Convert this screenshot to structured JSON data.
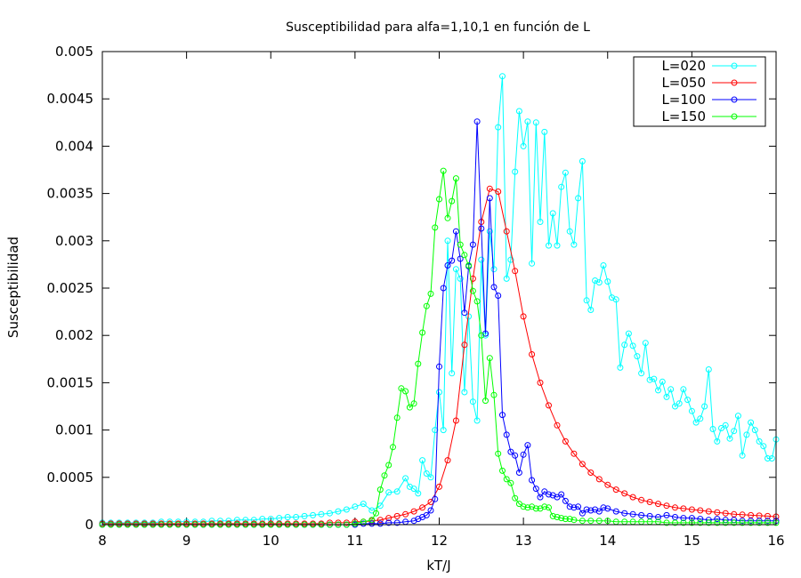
{
  "chart_data": {
    "type": "line",
    "title": "Susceptibilidad para alfa=1,10,1 en función de L",
    "xlabel": "kT/J",
    "ylabel": "Susceptibilidad",
    "xlim": [
      8,
      16
    ],
    "ylim": [
      0,
      0.005
    ],
    "xticks": [
      "8",
      "9",
      "10",
      "11",
      "12",
      "13",
      "14",
      "15",
      "16"
    ],
    "yticks": [
      "0",
      "0.0005",
      "0.001",
      "0.0015",
      "0.002",
      "0.0025",
      "0.003",
      "0.0035",
      "0.004",
      "0.0045",
      "0.005"
    ],
    "grid": false,
    "legend_position": "top-right",
    "marker": "open-circle",
    "series": [
      {
        "name": "L=020",
        "color": "#00ffff",
        "x": [
          8.0,
          8.1,
          8.2,
          8.3,
          8.4,
          8.5,
          8.6,
          8.7,
          8.8,
          8.9,
          9.0,
          9.1,
          9.2,
          9.3,
          9.4,
          9.5,
          9.6,
          9.7,
          9.8,
          9.9,
          10.0,
          10.1,
          10.2,
          10.3,
          10.4,
          10.5,
          10.6,
          10.7,
          10.8,
          10.9,
          11.0,
          11.1,
          11.2,
          11.3,
          11.4,
          11.5,
          11.6,
          11.65,
          11.7,
          11.75,
          11.8,
          11.85,
          11.9,
          11.95,
          12.0,
          12.05,
          12.1,
          12.15,
          12.2,
          12.25,
          12.3,
          12.35,
          12.4,
          12.45,
          12.5,
          12.55,
          12.6,
          12.65,
          12.7,
          12.75,
          12.8,
          12.85,
          12.9,
          12.95,
          13.0,
          13.05,
          13.1,
          13.15,
          13.2,
          13.25,
          13.3,
          13.35,
          13.4,
          13.45,
          13.5,
          13.55,
          13.6,
          13.65,
          13.7,
          13.75,
          13.8,
          13.85,
          13.9,
          13.95,
          14.0,
          14.05,
          14.1,
          14.15,
          14.2,
          14.25,
          14.3,
          14.35,
          14.4,
          14.45,
          14.5,
          14.55,
          14.6,
          14.65,
          14.7,
          14.75,
          14.8,
          14.85,
          14.9,
          14.95,
          15.0,
          15.05,
          15.1,
          15.15,
          15.2,
          15.25,
          15.3,
          15.35,
          15.4,
          15.45,
          15.5,
          15.55,
          15.6,
          15.65,
          15.7,
          15.75,
          15.8,
          15.85,
          15.9,
          15.95,
          16.0
        ],
        "y": [
          2e-05,
          2e-05,
          2e-05,
          2e-05,
          2e-05,
          2e-05,
          2e-05,
          3e-05,
          3e-05,
          3e-05,
          3e-05,
          3e-05,
          3e-05,
          4e-05,
          4e-05,
          4e-05,
          5e-05,
          5e-05,
          5e-05,
          6e-05,
          6e-05,
          7e-05,
          8e-05,
          8e-05,
          9e-05,
          0.0001,
          0.00011,
          0.00012,
          0.00014,
          0.00016,
          0.00019,
          0.00022,
          0.00015,
          0.0002,
          0.00034,
          0.00035,
          0.00049,
          0.0004,
          0.00038,
          0.00033,
          0.00068,
          0.00054,
          0.0005,
          0.001,
          0.0014,
          0.001,
          0.003,
          0.0016,
          0.0027,
          0.0026,
          0.0014,
          0.0022,
          0.0013,
          0.0011,
          0.0028,
          0.002,
          0.0031,
          0.0027,
          0.0042,
          0.00474,
          0.0026,
          0.0028,
          0.00373,
          0.00437,
          0.004,
          0.00426,
          0.00276,
          0.00425,
          0.0032,
          0.00415,
          0.00295,
          0.00329,
          0.00295,
          0.00357,
          0.00372,
          0.0031,
          0.00296,
          0.00345,
          0.00384,
          0.00237,
          0.00227,
          0.00258,
          0.00256,
          0.00274,
          0.00257,
          0.0024,
          0.00238,
          0.00166,
          0.0019,
          0.00202,
          0.00189,
          0.00178,
          0.0016,
          0.00192,
          0.00153,
          0.00154,
          0.00142,
          0.00151,
          0.00135,
          0.00143,
          0.00125,
          0.00128,
          0.00143,
          0.00132,
          0.0012,
          0.00108,
          0.00112,
          0.00125,
          0.00164,
          0.00101,
          0.00088,
          0.00102,
          0.00105,
          0.00091,
          0.00099,
          0.00115,
          0.00073,
          0.00095,
          0.00108,
          0.001,
          0.00088,
          0.00083,
          0.0007,
          0.0007,
          0.0009
        ]
      },
      {
        "name": "L=050",
        "color": "#ff0000",
        "x": [
          8.0,
          8.1,
          8.2,
          8.3,
          8.4,
          8.5,
          8.6,
          8.7,
          8.8,
          8.9,
          9.0,
          9.1,
          9.2,
          9.3,
          9.4,
          9.5,
          9.6,
          9.7,
          9.8,
          9.9,
          10.0,
          10.1,
          10.2,
          10.3,
          10.4,
          10.5,
          10.6,
          10.7,
          10.8,
          10.9,
          11.0,
          11.1,
          11.2,
          11.3,
          11.4,
          11.5,
          11.6,
          11.7,
          11.8,
          11.9,
          12.0,
          12.1,
          12.2,
          12.3,
          12.4,
          12.5,
          12.6,
          12.7,
          12.8,
          12.9,
          13.0,
          13.1,
          13.2,
          13.3,
          13.4,
          13.5,
          13.6,
          13.7,
          13.8,
          13.9,
          14.0,
          14.1,
          14.2,
          14.3,
          14.4,
          14.5,
          14.6,
          14.7,
          14.8,
          14.9,
          15.0,
          15.1,
          15.2,
          15.3,
          15.4,
          15.5,
          15.6,
          15.7,
          15.8,
          15.9,
          16.0
        ],
        "y": [
          1e-05,
          1e-05,
          1e-05,
          1e-05,
          1e-05,
          1e-05,
          1e-05,
          1e-05,
          1e-05,
          1e-05,
          1e-05,
          1e-05,
          1e-05,
          1e-05,
          1e-05,
          1e-05,
          1e-05,
          1e-05,
          1e-05,
          1e-05,
          1e-05,
          1e-05,
          1e-05,
          1e-05,
          1e-05,
          1e-05,
          1e-05,
          2e-05,
          2e-05,
          2e-05,
          3e-05,
          3e-05,
          4e-05,
          5e-05,
          7e-05,
          9e-05,
          0.00011,
          0.00014,
          0.00018,
          0.00024,
          0.0004,
          0.00068,
          0.0011,
          0.0019,
          0.0026,
          0.0032,
          0.00355,
          0.00352,
          0.0031,
          0.00268,
          0.0022,
          0.0018,
          0.0015,
          0.00126,
          0.00105,
          0.00088,
          0.00075,
          0.00064,
          0.00055,
          0.00048,
          0.00042,
          0.00037,
          0.00033,
          0.00029,
          0.00026,
          0.00024,
          0.00022,
          0.0002,
          0.00018,
          0.00017,
          0.00016,
          0.00015,
          0.00014,
          0.00013,
          0.00012,
          0.00011,
          0.000105,
          0.0001,
          9.5e-05,
          9e-05,
          8.5e-05
        ]
      },
      {
        "name": "L=100",
        "color": "#0000ff",
        "x": [
          8.0,
          8.1,
          8.2,
          8.3,
          8.4,
          8.5,
          8.6,
          8.7,
          8.8,
          8.9,
          9.0,
          9.1,
          9.2,
          9.3,
          9.4,
          9.5,
          9.6,
          9.7,
          9.8,
          9.9,
          10.0,
          10.1,
          10.2,
          10.3,
          10.4,
          10.5,
          10.6,
          10.7,
          10.8,
          10.9,
          11.0,
          11.1,
          11.2,
          11.3,
          11.4,
          11.5,
          11.6,
          11.7,
          11.75,
          11.8,
          11.85,
          11.9,
          11.95,
          12.0,
          12.05,
          12.1,
          12.15,
          12.2,
          12.25,
          12.3,
          12.35,
          12.4,
          12.45,
          12.5,
          12.55,
          12.6,
          12.65,
          12.7,
          12.75,
          12.8,
          12.85,
          12.9,
          12.95,
          13.0,
          13.05,
          13.1,
          13.15,
          13.2,
          13.25,
          13.3,
          13.35,
          13.4,
          13.45,
          13.5,
          13.55,
          13.6,
          13.65,
          13.7,
          13.75,
          13.8,
          13.85,
          13.9,
          13.95,
          14.0,
          14.1,
          14.2,
          14.3,
          14.4,
          14.5,
          14.6,
          14.7,
          14.8,
          14.9,
          15.0,
          15.1,
          15.2,
          15.3,
          15.4,
          15.5,
          15.6,
          15.7,
          15.8,
          15.9,
          16.0
        ],
        "y": [
          0,
          0,
          0,
          0,
          0,
          0,
          0,
          0,
          0,
          0,
          0,
          0,
          0,
          0,
          0,
          0,
          0,
          0,
          0,
          0,
          0,
          0,
          0,
          0,
          0,
          0,
          0,
          0,
          0,
          0,
          0,
          1e-05,
          1e-05,
          1e-05,
          2e-05,
          2e-05,
          3e-05,
          4e-05,
          6e-05,
          8e-05,
          0.0001,
          0.00015,
          0.00027,
          0.00167,
          0.0025,
          0.00274,
          0.00279,
          0.0031,
          0.00281,
          0.00224,
          0.00273,
          0.00296,
          0.00426,
          0.00313,
          0.00202,
          0.00345,
          0.00251,
          0.00242,
          0.00116,
          0.00095,
          0.00077,
          0.00073,
          0.00055,
          0.00074,
          0.00084,
          0.00047,
          0.00038,
          0.00029,
          0.00035,
          0.00032,
          0.00031,
          0.00029,
          0.00032,
          0.00025,
          0.00019,
          0.00018,
          0.00019,
          0.00012,
          0.00016,
          0.00015,
          0.00016,
          0.00014,
          0.00018,
          0.00017,
          0.00014,
          0.00012,
          0.00011,
          0.0001,
          9e-05,
          8e-05,
          0.0001,
          8e-05,
          7e-05,
          7e-05,
          6e-05,
          5e-05,
          6e-05,
          5e-05,
          5e-05,
          4e-05,
          4e-05,
          4e-05,
          4e-05,
          4e-05
        ]
      },
      {
        "name": "L=150",
        "color": "#00ff00",
        "x": [
          8.0,
          8.1,
          8.2,
          8.3,
          8.4,
          8.5,
          8.6,
          8.7,
          8.8,
          8.9,
          9.0,
          9.1,
          9.2,
          9.3,
          9.4,
          9.5,
          9.6,
          9.7,
          9.8,
          9.9,
          10.0,
          10.1,
          10.2,
          10.3,
          10.4,
          10.5,
          10.6,
          10.7,
          10.8,
          10.9,
          11.0,
          11.1,
          11.2,
          11.25,
          11.3,
          11.35,
          11.4,
          11.45,
          11.5,
          11.55,
          11.6,
          11.65,
          11.7,
          11.75,
          11.8,
          11.85,
          11.9,
          11.95,
          12.0,
          12.05,
          12.1,
          12.15,
          12.2,
          12.25,
          12.3,
          12.35,
          12.4,
          12.45,
          12.5,
          12.55,
          12.6,
          12.65,
          12.7,
          12.75,
          12.8,
          12.85,
          12.9,
          12.95,
          13.0,
          13.05,
          13.1,
          13.15,
          13.2,
          13.25,
          13.3,
          13.35,
          13.4,
          13.45,
          13.5,
          13.55,
          13.6,
          13.7,
          13.8,
          13.9,
          14.0,
          14.1,
          14.2,
          14.3,
          14.4,
          14.5,
          14.6,
          14.7,
          14.8,
          14.9,
          15.0,
          15.1,
          15.2,
          15.3,
          15.4,
          15.5,
          15.6,
          15.7,
          15.8,
          15.9,
          16.0
        ],
        "y": [
          0,
          0,
          0,
          0,
          0,
          0,
          0,
          0,
          0,
          0,
          0,
          0,
          0,
          0,
          0,
          0,
          0,
          0,
          0,
          0,
          0,
          0,
          0,
          0,
          0,
          0,
          0,
          0,
          0,
          0,
          1e-05,
          3e-05,
          5e-05,
          0.00012,
          0.00037,
          0.00052,
          0.00063,
          0.00082,
          0.00113,
          0.00144,
          0.00141,
          0.00124,
          0.00128,
          0.0017,
          0.00203,
          0.00231,
          0.00244,
          0.00314,
          0.00344,
          0.00374,
          0.00324,
          0.00342,
          0.00366,
          0.00296,
          0.00285,
          0.00274,
          0.00247,
          0.00236,
          0.002,
          0.00131,
          0.00176,
          0.00137,
          0.00075,
          0.00057,
          0.00048,
          0.00044,
          0.00028,
          0.00022,
          0.00019,
          0.00018,
          0.00019,
          0.00017,
          0.00017,
          0.00019,
          0.00018,
          9e-05,
          8e-05,
          7e-05,
          6e-05,
          6e-05,
          5e-05,
          4e-05,
          4e-05,
          4e-05,
          4e-05,
          3e-05,
          3e-05,
          3e-05,
          3e-05,
          3e-05,
          3e-05,
          2e-05,
          2e-05,
          2e-05,
          2e-05,
          2e-05,
          2e-05,
          2e-05,
          2e-05,
          2e-05,
          2e-05,
          2e-05,
          2e-05,
          2e-05,
          2e-05
        ]
      }
    ]
  }
}
